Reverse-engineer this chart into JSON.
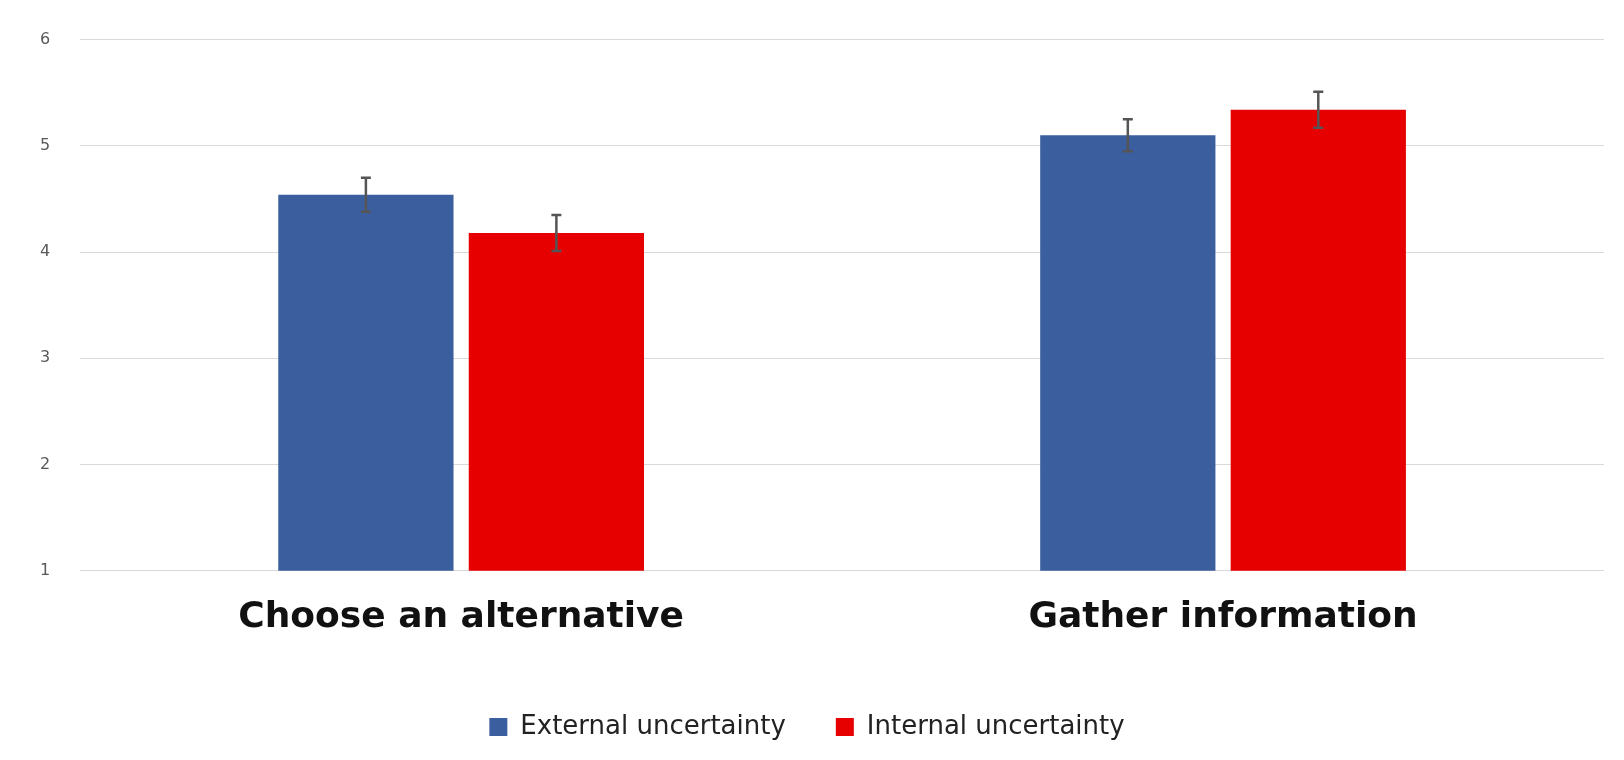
{
  "chart_data": {
    "type": "bar",
    "categories": [
      "Choose an alternative",
      "Gather information"
    ],
    "series": [
      {
        "name": "External uncertainty",
        "color": "#3a5e9e",
        "values": [
          4.54,
          5.1
        ],
        "errors": [
          0.16,
          0.15
        ]
      },
      {
        "name": "Internal uncertainty",
        "color": "#e60000",
        "values": [
          4.18,
          5.34
        ],
        "errors": [
          0.17,
          0.17
        ]
      }
    ],
    "ylim": [
      1,
      6
    ],
    "yticks": [
      1,
      2,
      3,
      4,
      5,
      6
    ],
    "grid": "y",
    "legend": "bottom"
  }
}
